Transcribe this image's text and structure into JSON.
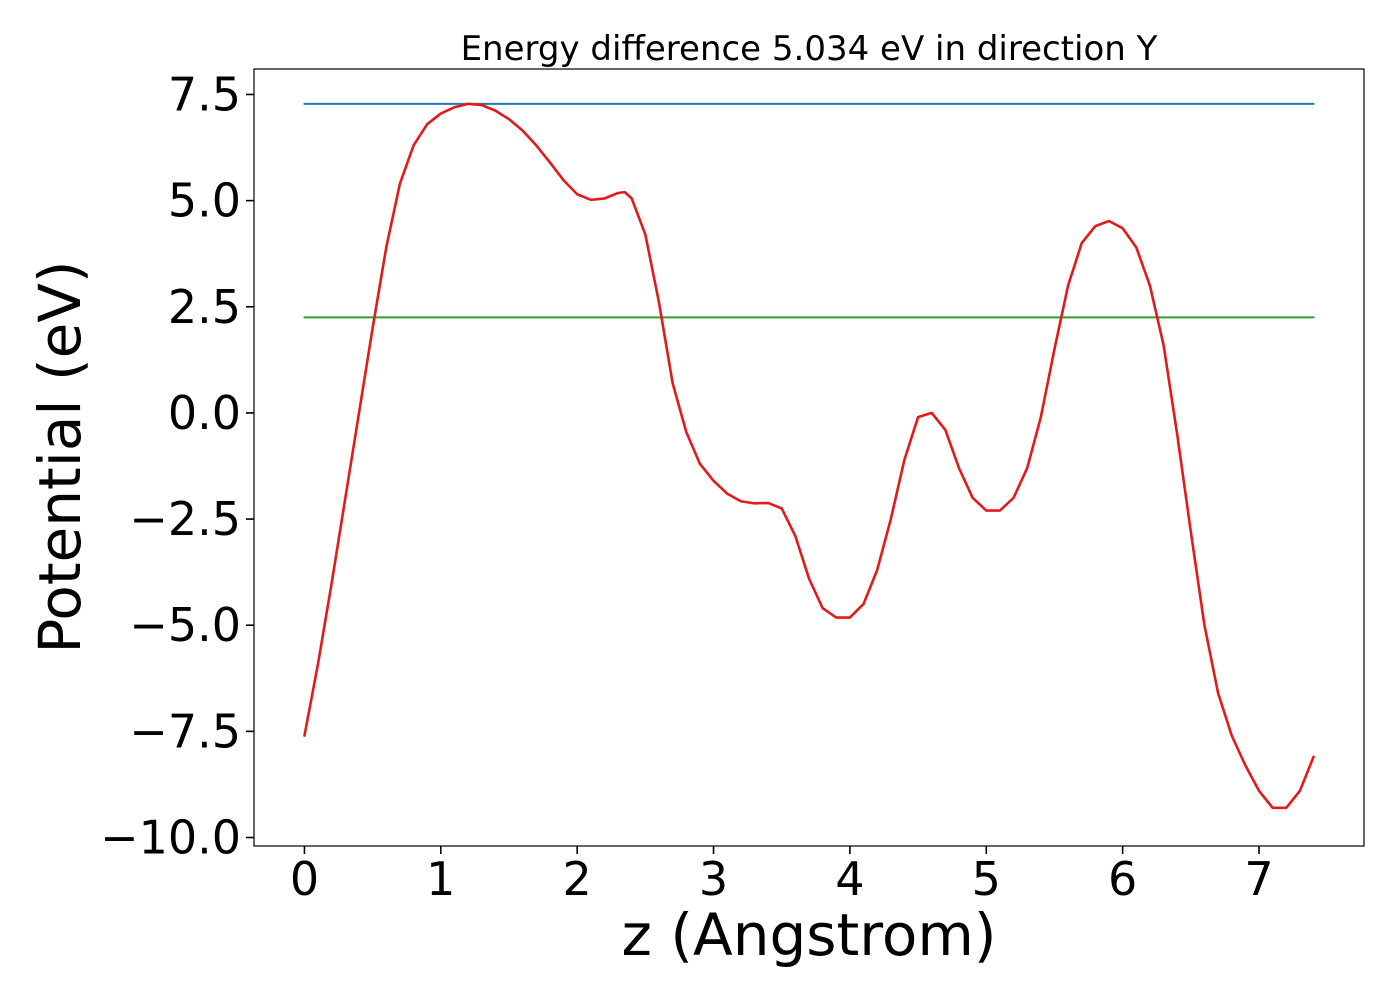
{
  "chart_data": {
    "type": "line",
    "title": "Energy difference 5.034 eV in direction Y",
    "xlabel": "z (Angstrom)",
    "ylabel": "Potential (eV)",
    "xlim": [
      -0.37,
      7.77
    ],
    "ylim": [
      -10.2,
      8.1
    ],
    "x_ticks": [
      0,
      1,
      2,
      3,
      4,
      5,
      6,
      7
    ],
    "x_tick_labels": [
      "0",
      "1",
      "2",
      "3",
      "4",
      "5",
      "6",
      "7"
    ],
    "y_ticks": [
      7.5,
      5.0,
      2.5,
      0.0,
      -2.5,
      -5.0,
      -7.5,
      -10.0
    ],
    "y_tick_labels": [
      "7.5",
      "5.0",
      "2.5",
      "0.0",
      "−2.5",
      "−5.0",
      "−7.5",
      "−10.0"
    ],
    "grid": false,
    "series": [
      {
        "color": "#1f77b4",
        "x": [
          0,
          7.4
        ],
        "y": [
          7.28,
          7.28
        ]
      },
      {
        "color": "#2ca02c",
        "x": [
          0,
          7.4
        ],
        "y": [
          2.25,
          2.25
        ]
      },
      {
        "color": "#e31a1c",
        "x": [
          0,
          0.1,
          0.2,
          0.3,
          0.4,
          0.5,
          0.6,
          0.7,
          0.8,
          0.9,
          1.0,
          1.1,
          1.2,
          1.3,
          1.4,
          1.5,
          1.6,
          1.7,
          1.8,
          1.9,
          2.0,
          2.1,
          2.2,
          2.3,
          2.35,
          2.4,
          2.5,
          2.6,
          2.7,
          2.8,
          2.9,
          3.0,
          3.1,
          3.2,
          3.3,
          3.4,
          3.5,
          3.6,
          3.7,
          3.8,
          3.9,
          4.0,
          4.1,
          4.2,
          4.3,
          4.4,
          4.5,
          4.6,
          4.7,
          4.8,
          4.9,
          5.0,
          5.1,
          5.2,
          5.3,
          5.4,
          5.5,
          5.6,
          5.7,
          5.8,
          5.9,
          6.0,
          6.1,
          6.2,
          6.3,
          6.4,
          6.5,
          6.6,
          6.7,
          6.8,
          6.9,
          7.0,
          7.1,
          7.2,
          7.3,
          7.4
        ],
        "y": [
          -7.6,
          -5.9,
          -4.0,
          -2.0,
          0.0,
          2.0,
          3.9,
          5.4,
          6.3,
          6.8,
          7.05,
          7.2,
          7.28,
          7.25,
          7.12,
          6.92,
          6.65,
          6.3,
          5.9,
          5.48,
          5.15,
          5.02,
          5.05,
          5.18,
          5.2,
          5.05,
          4.2,
          2.6,
          0.7,
          -0.45,
          -1.2,
          -1.6,
          -1.9,
          -2.08,
          -2.13,
          -2.12,
          -2.25,
          -2.9,
          -3.9,
          -4.6,
          -4.82,
          -4.82,
          -4.5,
          -3.7,
          -2.5,
          -1.1,
          -0.1,
          0.0,
          -0.4,
          -1.3,
          -2.0,
          -2.3,
          -2.3,
          -2.0,
          -1.3,
          -0.1,
          1.5,
          3.0,
          4.0,
          4.4,
          4.52,
          4.35,
          3.9,
          3.0,
          1.6,
          -0.5,
          -2.8,
          -5.0,
          -6.6,
          -7.6,
          -8.3,
          -8.9,
          -9.3,
          -9.3,
          -8.9,
          -8.1
        ]
      }
    ]
  }
}
